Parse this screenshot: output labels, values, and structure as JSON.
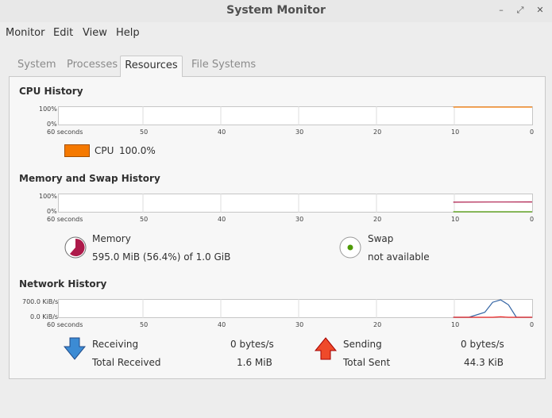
{
  "window": {
    "title": "System Monitor"
  },
  "window_controls": {
    "minimize": "–",
    "maximize": "⤢",
    "close": "✕"
  },
  "menubar": {
    "items": [
      "Monitor",
      "Edit",
      "View",
      "Help"
    ]
  },
  "tabs": {
    "items": [
      "System",
      "Processes",
      "Resources",
      "File Systems"
    ],
    "active": "Resources"
  },
  "x_axis": {
    "ticks": [
      "60 seconds",
      "50",
      "40",
      "30",
      "20",
      "10",
      "0"
    ]
  },
  "cpu": {
    "title": "CPU History",
    "y_max": "100%",
    "y_min": "0%",
    "legend_label": "CPU",
    "legend_value": "100.0%",
    "color": "#f57900"
  },
  "memory_swap": {
    "title": "Memory and Swap History",
    "y_max": "100%",
    "y_min": "0%",
    "memory_label": "Memory",
    "memory_value": "595.0 MiB (56.4%) of 1.0 GiB",
    "memory_color": "#ad1a4a",
    "swap_label": "Swap",
    "swap_value": "not available",
    "swap_color": "#4e9a06"
  },
  "network": {
    "title": "Network History",
    "y_max": "700.0 KiB/s",
    "y_min": "0.0 KiB/s",
    "receiving_label": "Receiving",
    "receiving_value": "0 bytes/s",
    "total_received_label": "Total Received",
    "total_received_value": "1.6 MiB",
    "sending_label": "Sending",
    "sending_value": "0 bytes/s",
    "total_sent_label": "Total Sent",
    "total_sent_value": "44.3 KiB",
    "receiving_color": "#3465a4",
    "sending_color": "#ef2929"
  },
  "chart_data": [
    {
      "type": "line",
      "title": "CPU History",
      "x": [
        10,
        8,
        6,
        4,
        2,
        0
      ],
      "series": [
        {
          "name": "CPU",
          "values": [
            100,
            100,
            100,
            100,
            100,
            100
          ]
        }
      ],
      "ylim": [
        0,
        100
      ]
    },
    {
      "type": "line",
      "title": "Memory and Swap History",
      "x": [
        10,
        5,
        0
      ],
      "series": [
        {
          "name": "Memory",
          "values": [
            55,
            56,
            56.4
          ]
        },
        {
          "name": "Swap",
          "values": [
            0,
            0,
            0
          ]
        }
      ],
      "ylim": [
        0,
        100
      ]
    },
    {
      "type": "line",
      "title": "Network History",
      "x": [
        10,
        8,
        6,
        5,
        4,
        3,
        2,
        0
      ],
      "series": [
        {
          "name": "Receiving",
          "values": [
            0,
            0,
            200,
            600,
            700,
            500,
            0,
            0
          ]
        },
        {
          "name": "Sending",
          "values": [
            0,
            0,
            0,
            0,
            20,
            0,
            0,
            0
          ]
        }
      ],
      "ylim": [
        0,
        700
      ]
    }
  ]
}
